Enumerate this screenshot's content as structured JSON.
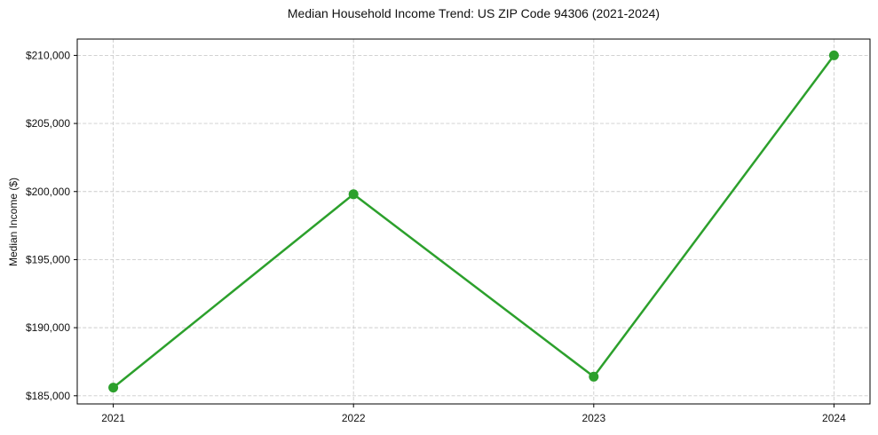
{
  "chart_data": {
    "type": "line",
    "title": "Median Household Income Trend: US ZIP Code 94306 (2021-2024)",
    "xlabel": "",
    "ylabel": "Median Income ($)",
    "x": [
      2021,
      2022,
      2023,
      2024
    ],
    "xtick_labels": [
      "2021",
      "2022",
      "2023",
      "2024"
    ],
    "values": [
      185600,
      199800,
      186400,
      210000
    ],
    "yticks": [
      185000,
      190000,
      195000,
      200000,
      205000,
      210000
    ],
    "ytick_labels": [
      "$185,000",
      "$190,000",
      "$195,000",
      "$200,000",
      "$205,000",
      "$210,000"
    ],
    "ylim": [
      184400,
      211200
    ],
    "x_margin_fraction": 0.05,
    "grid": true,
    "grid_style": "dashed",
    "legend": false,
    "marker": "circle",
    "line_color": "#2ca02c",
    "line_width": 2.5,
    "marker_radius": 5.5,
    "grid_color": "#cccccc",
    "axis_color": "#000000",
    "text_color": "#111111",
    "background_color": "#ffffff"
  }
}
